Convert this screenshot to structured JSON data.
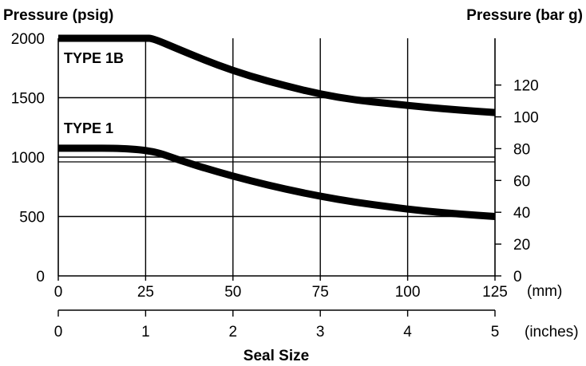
{
  "chart_data": {
    "type": "line",
    "y_left_label": "Pressure (psig)",
    "y_right_label": "Pressure (bar g)",
    "xlabel": "Seal Size",
    "x_unit_mm": "(mm)",
    "x_unit_inches": "(inches)",
    "x_mm_ticks": [
      "0",
      "25",
      "50",
      "75",
      "100",
      "125"
    ],
    "x_inch_ticks": [
      "0",
      "1",
      "2",
      "3",
      "4",
      "5"
    ],
    "y_left_ticks": [
      "0",
      "500",
      "1000",
      "1500",
      "2000"
    ],
    "y_right_ticks": [
      "0",
      "20",
      "40",
      "60",
      "80",
      "100",
      "120"
    ],
    "xlim_mm": [
      0,
      125
    ],
    "ylim_psig": [
      0,
      2000
    ],
    "grid": true,
    "series": [
      {
        "name": "TYPE 1B",
        "x": [
          0,
          25,
          27,
          35,
          45,
          55,
          65,
          75,
          85,
          95,
          105,
          115,
          125
        ],
        "y": [
          2000,
          2000,
          2000,
          1900,
          1780,
          1680,
          1600,
          1530,
          1480,
          1450,
          1420,
          1395,
          1375
        ]
      },
      {
        "name": "TYPE 1",
        "x": [
          0,
          25,
          35,
          45,
          55,
          65,
          75,
          85,
          95,
          105,
          115,
          125
        ],
        "y": [
          1075,
          1075,
          970,
          880,
          800,
          730,
          670,
          620,
          580,
          545,
          520,
          500
        ]
      }
    ]
  }
}
